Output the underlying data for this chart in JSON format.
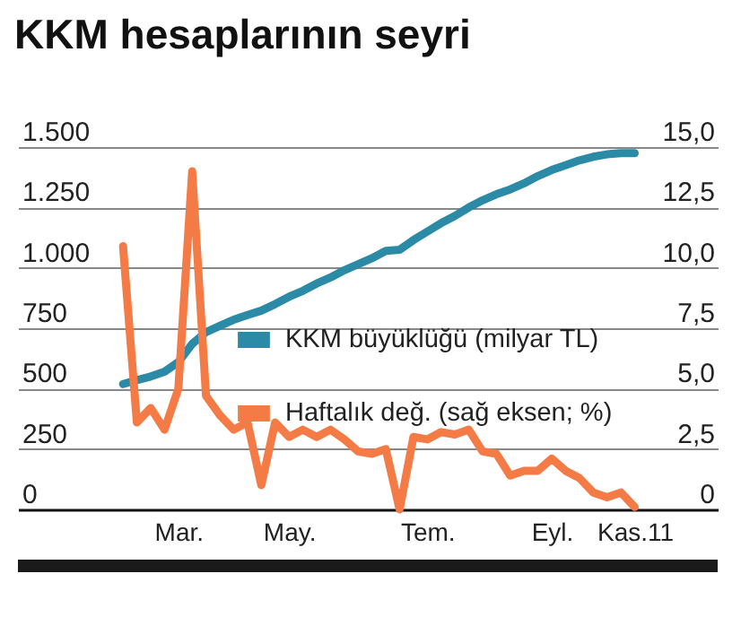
{
  "chart_data": {
    "type": "line",
    "title": "KKM hesaplarının seyri",
    "categories": [
      null,
      null,
      null,
      null,
      "Mar.",
      null,
      null,
      null,
      null,
      null,
      null,
      null,
      "May.",
      null,
      null,
      null,
      null,
      null,
      null,
      null,
      null,
      null,
      "Tem.",
      null,
      null,
      null,
      null,
      null,
      null,
      null,
      null,
      "Eyl.",
      null,
      null,
      null,
      null,
      null,
      "Kas.11"
    ],
    "series": [
      {
        "name": "KKM büyüklüğü (milyar TL)",
        "color": "#2b8aa6",
        "values": [
          519,
          535,
          550,
          570,
          610,
          685,
          734,
          760,
          785,
          805,
          823,
          850,
          880,
          905,
          935,
          960,
          990,
          1015,
          1040,
          1070,
          1075,
          1115,
          1150,
          1185,
          1215,
          1250,
          1280,
          1305,
          1325,
          1350,
          1380,
          1405,
          1425,
          1445,
          1460,
          1470,
          1475,
          1475
        ]
      },
      {
        "name": "Haftalık değ. (sağ eksen; %)",
        "color": "#f47b45",
        "axis": "y2",
        "values": [
          10.9,
          3.6,
          4.2,
          3.3,
          5.0,
          14.0,
          4.7,
          3.9,
          3.3,
          3.6,
          1.0,
          3.6,
          3.0,
          3.3,
          3.0,
          3.3,
          2.9,
          2.4,
          2.3,
          2.5,
          0,
          3.0,
          2.9,
          3.2,
          3.1,
          3.3,
          2.4,
          2.3,
          1.4,
          1.6,
          1.6,
          2.1,
          1.6,
          1.3,
          0.7,
          0.5,
          0.7,
          0.1
        ]
      }
    ],
    "ylim": [
      0,
      1500
    ],
    "yticks": [
      0,
      250,
      500,
      750,
      {
        "value": 1000,
        "label": "1.000"
      },
      {
        "value": 1250,
        "label": "1.250"
      },
      {
        "value": 1500,
        "label": "1.500"
      }
    ],
    "y2lim": [
      0,
      15
    ],
    "y2ticks": [
      0,
      {
        "value": 2.5,
        "label": "2,5"
      },
      {
        "value": 5,
        "label": "5,0"
      },
      {
        "value": 7.5,
        "label": "7,5"
      },
      {
        "value": 10,
        "label": "10,0"
      },
      {
        "value": 12.5,
        "label": "12,5"
      },
      {
        "value": 15,
        "label": "15,0"
      }
    ],
    "grid": "y",
    "legend": "right",
    "marker": "none",
    "line_style": "solid"
  }
}
